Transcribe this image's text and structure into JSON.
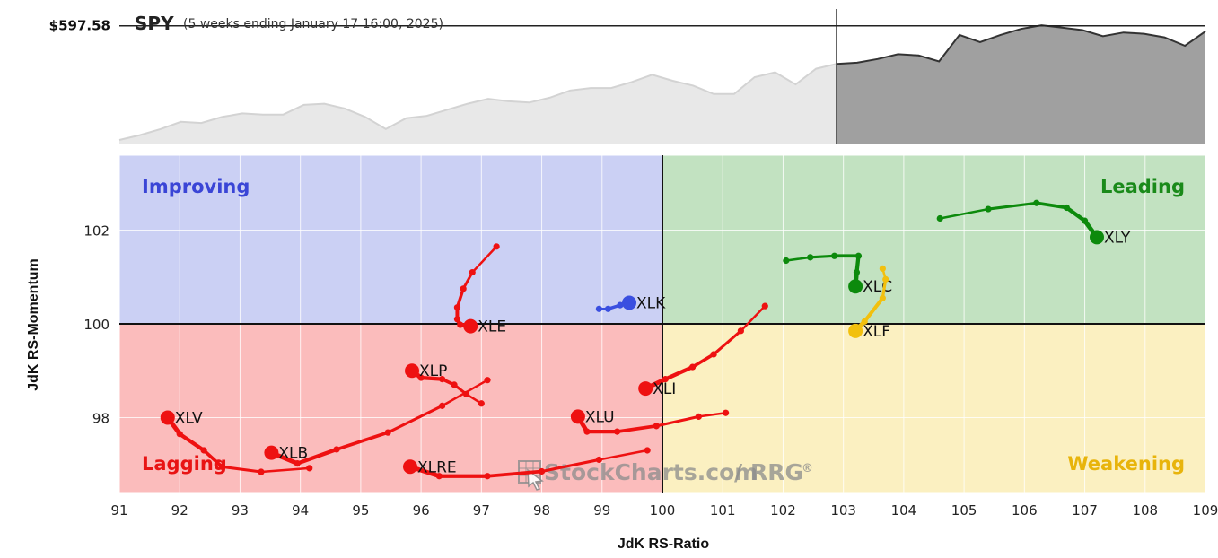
{
  "header": {
    "symbol": "SPY",
    "period": "(5 weeks ending January 17 16:00, 2025)",
    "price_label": "$597.58"
  },
  "watermark": {
    "brand": "StockCharts.com",
    "separator": "/",
    "product": "RRG",
    "mark": "®"
  },
  "colors": {
    "improving_bg": "#cbd0f4",
    "leading_bg": "#c2e2c1",
    "lagging_bg": "#fbbcbc",
    "weakening_bg": "#fbf0c1",
    "improving_text": "#3a45d6",
    "leading_text": "#1a8a1a",
    "lagging_text": "#e81414",
    "weakening_text": "#e8b40c",
    "red": "#ee1111",
    "green": "#0c8a0c",
    "blue": "#3a4fe0",
    "yellow": "#f2c00e"
  },
  "chart_data": {
    "type": "scatter",
    "xlabel": "JdK RS-Ratio",
    "ylabel": "JdK RS-Momentum",
    "xlim": [
      91,
      109
    ],
    "ylim": [
      96.4,
      103.6
    ],
    "x_ticks": [
      "91",
      "92",
      "93",
      "94",
      "95",
      "96",
      "97",
      "98",
      "99",
      "100",
      "101",
      "102",
      "103",
      "104",
      "105",
      "106",
      "107",
      "108",
      "109"
    ],
    "y_ticks": [
      "98",
      "100",
      "102"
    ],
    "quadrants": {
      "improving": "Improving",
      "leading": "Leading",
      "lagging": "Lagging",
      "weakening": "Weakening"
    },
    "series": [
      {
        "name": "XLY",
        "color": "green",
        "points": [
          [
            104.6,
            102.25
          ],
          [
            105.4,
            102.45
          ],
          [
            106.2,
            102.58
          ],
          [
            106.7,
            102.48
          ],
          [
            107.0,
            102.2
          ],
          [
            107.2,
            101.85
          ]
        ]
      },
      {
        "name": "XLC",
        "color": "green",
        "points": [
          [
            102.05,
            101.35
          ],
          [
            102.45,
            101.42
          ],
          [
            102.85,
            101.45
          ],
          [
            103.25,
            101.45
          ],
          [
            103.22,
            101.1
          ],
          [
            103.2,
            100.8
          ]
        ]
      },
      {
        "name": "XLF",
        "color": "yellow",
        "points": [
          [
            103.65,
            101.18
          ],
          [
            103.7,
            100.95
          ],
          [
            103.65,
            100.55
          ],
          [
            103.35,
            100.05
          ],
          [
            103.2,
            99.85
          ]
        ]
      },
      {
        "name": "XLK",
        "color": "blue",
        "points": [
          [
            98.95,
            100.32
          ],
          [
            99.1,
            100.32
          ],
          [
            99.3,
            100.4
          ],
          [
            99.45,
            100.45
          ]
        ]
      },
      {
        "name": "XLE",
        "color": "red",
        "points": [
          [
            97.25,
            101.65
          ],
          [
            96.85,
            101.1
          ],
          [
            96.7,
            100.75
          ],
          [
            96.6,
            100.35
          ],
          [
            96.6,
            100.1
          ],
          [
            96.65,
            99.98
          ],
          [
            96.82,
            99.95
          ]
        ]
      },
      {
        "name": "XLI",
        "color": "red",
        "points": [
          [
            101.7,
            100.38
          ],
          [
            101.3,
            99.85
          ],
          [
            100.85,
            99.35
          ],
          [
            100.5,
            99.08
          ],
          [
            100.05,
            98.82
          ],
          [
            99.72,
            98.62
          ]
        ]
      },
      {
        "name": "XLP",
        "color": "red",
        "points": [
          [
            97.0,
            98.3
          ],
          [
            96.75,
            98.5
          ],
          [
            96.55,
            98.7
          ],
          [
            96.35,
            98.82
          ],
          [
            96.0,
            98.85
          ],
          [
            95.85,
            99.0
          ]
        ]
      },
      {
        "name": "XLU",
        "color": "red",
        "points": [
          [
            101.05,
            98.1
          ],
          [
            100.6,
            98.02
          ],
          [
            99.9,
            97.82
          ],
          [
            99.25,
            97.7
          ],
          [
            98.75,
            97.7
          ],
          [
            98.6,
            98.02
          ]
        ]
      },
      {
        "name": "XLV",
        "color": "red",
        "points": [
          [
            94.15,
            96.92
          ],
          [
            93.35,
            96.84
          ],
          [
            92.7,
            96.95
          ],
          [
            92.4,
            97.3
          ],
          [
            92.0,
            97.65
          ],
          [
            91.8,
            98.0
          ]
        ]
      },
      {
        "name": "XLB",
        "color": "red",
        "points": [
          [
            97.1,
            98.8
          ],
          [
            96.35,
            98.25
          ],
          [
            95.45,
            97.68
          ],
          [
            94.6,
            97.32
          ],
          [
            93.95,
            97.02
          ],
          [
            93.52,
            97.25
          ]
        ]
      },
      {
        "name": "XLRE",
        "color": "red",
        "points": [
          [
            99.75,
            97.3
          ],
          [
            98.95,
            97.1
          ],
          [
            98.0,
            96.85
          ],
          [
            97.1,
            96.75
          ],
          [
            96.3,
            96.75
          ],
          [
            95.82,
            96.95
          ]
        ]
      }
    ],
    "spy_line": {
      "ylim": [
        500,
        610
      ],
      "reference": 597.58,
      "forecast_start": 35,
      "values": [
        503,
        507,
        512,
        518,
        517,
        522,
        525,
        524,
        524,
        532,
        533,
        529,
        522,
        512,
        521,
        523,
        528,
        533,
        537,
        535,
        534,
        538,
        544,
        546,
        546,
        551,
        557,
        552,
        548,
        541,
        541,
        555,
        559,
        549,
        562,
        566,
        567,
        570,
        574,
        573,
        568,
        590,
        584,
        590,
        595,
        598,
        596,
        594,
        589,
        592,
        591,
        588,
        581,
        593
      ]
    }
  }
}
